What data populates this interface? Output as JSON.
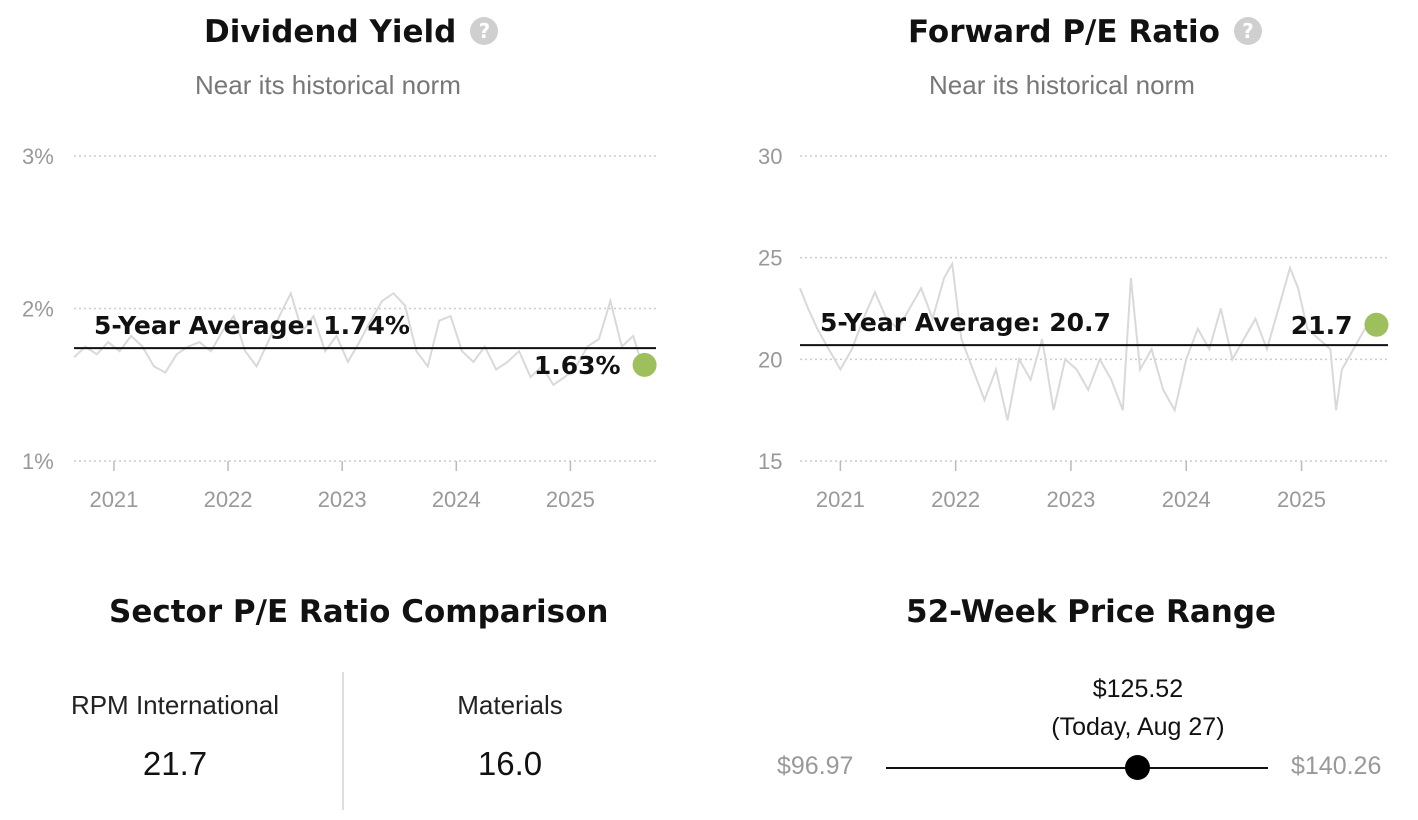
{
  "colors": {
    "accent": "#9dbf5c",
    "series": "#d9d9d9",
    "grid": "#cccccc"
  },
  "dividend": {
    "title": "Dividend Yield",
    "subtitle": "Near its historical norm",
    "avg_label": "5-Year Average: 1.74%",
    "current_label": "1.63%",
    "help_icon": "question-circle-icon"
  },
  "pe": {
    "title": "Forward P/E Ratio",
    "subtitle": "Near its historical norm",
    "avg_label": "5-Year Average: 20.7",
    "current_label": "21.7",
    "help_icon": "question-circle-icon"
  },
  "chart_data": [
    {
      "type": "line",
      "yunit": "%",
      "ylim": [
        1,
        3
      ],
      "xlim": [
        2020.65,
        2025.75
      ],
      "yticks": [
        {
          "v": 3,
          "label": "3%"
        },
        {
          "v": 2,
          "label": "2%"
        },
        {
          "v": 1,
          "label": "1%"
        }
      ],
      "xticks": [
        {
          "v": 2021,
          "label": "2021"
        },
        {
          "v": 2022,
          "label": "2022"
        },
        {
          "v": 2023,
          "label": "2023"
        },
        {
          "v": 2024,
          "label": "2024"
        },
        {
          "v": 2025,
          "label": "2025"
        }
      ],
      "grid": true,
      "average": 1.74,
      "current": {
        "x": 2025.65,
        "y": 1.63
      },
      "series": [
        {
          "x": [
            2020.65,
            2020.75,
            2020.85,
            2020.95,
            2021.05,
            2021.15,
            2021.25,
            2021.35,
            2021.45,
            2021.55,
            2021.65,
            2021.75,
            2021.85,
            2021.95,
            2022.05,
            2022.15,
            2022.25,
            2022.35,
            2022.45,
            2022.55,
            2022.65,
            2022.75,
            2022.85,
            2022.95,
            2023.05,
            2023.15,
            2023.25,
            2023.35,
            2023.45,
            2023.55,
            2023.65,
            2023.75,
            2023.85,
            2023.95,
            2024.05,
            2024.15,
            2024.25,
            2024.35,
            2024.45,
            2024.55,
            2024.65,
            2024.75,
            2024.85,
            2024.95,
            2025.05,
            2025.15,
            2025.25,
            2025.35,
            2025.45,
            2025.55,
            2025.62
          ],
          "y": [
            1.68,
            1.75,
            1.7,
            1.78,
            1.72,
            1.82,
            1.75,
            1.62,
            1.58,
            1.7,
            1.75,
            1.78,
            1.72,
            1.85,
            1.95,
            1.72,
            1.62,
            1.78,
            1.95,
            2.1,
            1.85,
            1.95,
            1.72,
            1.82,
            1.65,
            1.78,
            1.92,
            2.05,
            2.1,
            2.02,
            1.72,
            1.62,
            1.92,
            1.95,
            1.72,
            1.65,
            1.75,
            1.6,
            1.65,
            1.72,
            1.55,
            1.62,
            1.5,
            1.55,
            1.62,
            1.75,
            1.8,
            2.05,
            1.75,
            1.82,
            1.65
          ]
        }
      ]
    },
    {
      "type": "line",
      "ylim": [
        15,
        30
      ],
      "xlim": [
        2020.65,
        2025.75
      ],
      "yticks": [
        {
          "v": 30,
          "label": "30"
        },
        {
          "v": 25,
          "label": "25"
        },
        {
          "v": 20,
          "label": "20"
        },
        {
          "v": 15,
          "label": "15"
        }
      ],
      "xticks": [
        {
          "v": 2021,
          "label": "2021"
        },
        {
          "v": 2022,
          "label": "2022"
        },
        {
          "v": 2023,
          "label": "2023"
        },
        {
          "v": 2024,
          "label": "2024"
        },
        {
          "v": 2025,
          "label": "2025"
        }
      ],
      "grid": true,
      "average": 20.7,
      "current": {
        "x": 2025.65,
        "y": 21.7
      },
      "series": [
        {
          "x": [
            2020.65,
            2020.72,
            2020.8,
            2020.9,
            2021.0,
            2021.1,
            2021.2,
            2021.3,
            2021.4,
            2021.5,
            2021.6,
            2021.7,
            2021.8,
            2021.9,
            2021.97,
            2022.05,
            2022.15,
            2022.25,
            2022.35,
            2022.45,
            2022.55,
            2022.65,
            2022.75,
            2022.85,
            2022.95,
            2023.05,
            2023.15,
            2023.25,
            2023.35,
            2023.45,
            2023.52,
            2023.6,
            2023.7,
            2023.8,
            2023.9,
            2024.0,
            2024.1,
            2024.2,
            2024.3,
            2024.4,
            2024.5,
            2024.6,
            2024.7,
            2024.8,
            2024.9,
            2024.97,
            2025.05,
            2025.15,
            2025.25,
            2025.3,
            2025.35,
            2025.45,
            2025.55,
            2025.62
          ],
          "y": [
            23.5,
            22.5,
            21.5,
            20.5,
            19.5,
            20.5,
            22.0,
            23.3,
            22.0,
            21.5,
            22.5,
            23.5,
            22.0,
            24.0,
            24.7,
            21.0,
            19.5,
            18.0,
            19.5,
            17.0,
            20.0,
            19.0,
            21.0,
            17.5,
            20.0,
            19.5,
            18.5,
            20.0,
            19.0,
            17.5,
            24.0,
            19.5,
            20.5,
            18.5,
            17.5,
            20.0,
            21.5,
            20.5,
            22.5,
            20.0,
            21.0,
            22.0,
            20.5,
            22.5,
            24.5,
            23.5,
            21.5,
            21.0,
            20.5,
            17.5,
            19.5,
            20.5,
            21.5,
            21.7
          ]
        }
      ]
    }
  ],
  "sector": {
    "title": "Sector P/E Ratio Comparison",
    "items": [
      {
        "name": "RPM International",
        "value": "21.7"
      },
      {
        "name": "Materials",
        "value": "16.0"
      }
    ]
  },
  "range": {
    "title": "52-Week Price Range",
    "low": "$96.97",
    "high": "$140.26",
    "current_price": "$125.52",
    "current_note": "(Today, Aug 27)",
    "low_value": 96.97,
    "high_value": 140.26,
    "current_value": 125.52
  }
}
